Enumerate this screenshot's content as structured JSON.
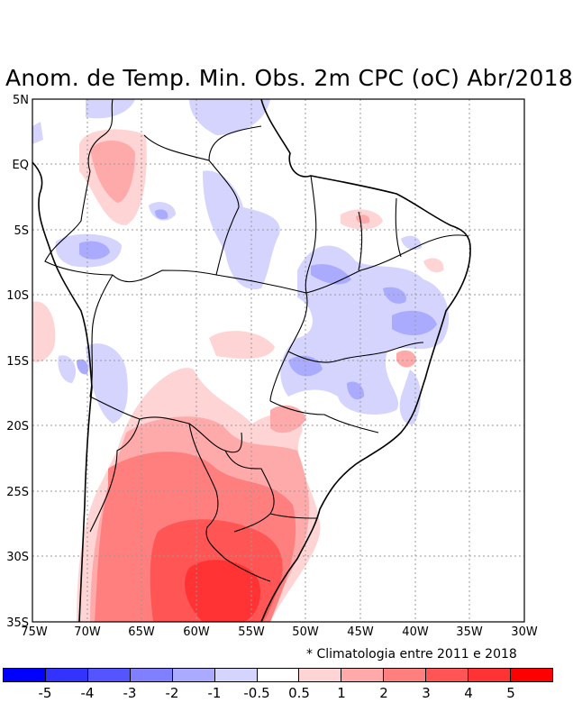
{
  "title": "Anom. de Temp. Min. Obs. 2m CPC (oC) Abr/2018",
  "note": "* Climatologia entre 2011 e 2018",
  "lon_labels": [
    "75W",
    "70W",
    "65W",
    "60W",
    "55W",
    "50W",
    "45W",
    "40W",
    "35W",
    "30W"
  ],
  "lat_labels": [
    "5N",
    "EQ",
    "5S",
    "10S",
    "15S",
    "20S",
    "25S",
    "30S",
    "35S"
  ],
  "colorbar": {
    "colors": [
      "#0000ff",
      "#3333ff",
      "#5555ff",
      "#7f7fff",
      "#aaaaff",
      "#d4d4ff",
      "#ffffff",
      "#ffd4d4",
      "#ffaaaa",
      "#ff7f7f",
      "#ff5555",
      "#ff3333",
      "#ff0000"
    ],
    "labels": [
      "-5",
      "-4",
      "-3",
      "-2",
      "-1",
      "-0.5",
      "0.5",
      "1",
      "2",
      "3",
      "4",
      "5"
    ]
  }
}
